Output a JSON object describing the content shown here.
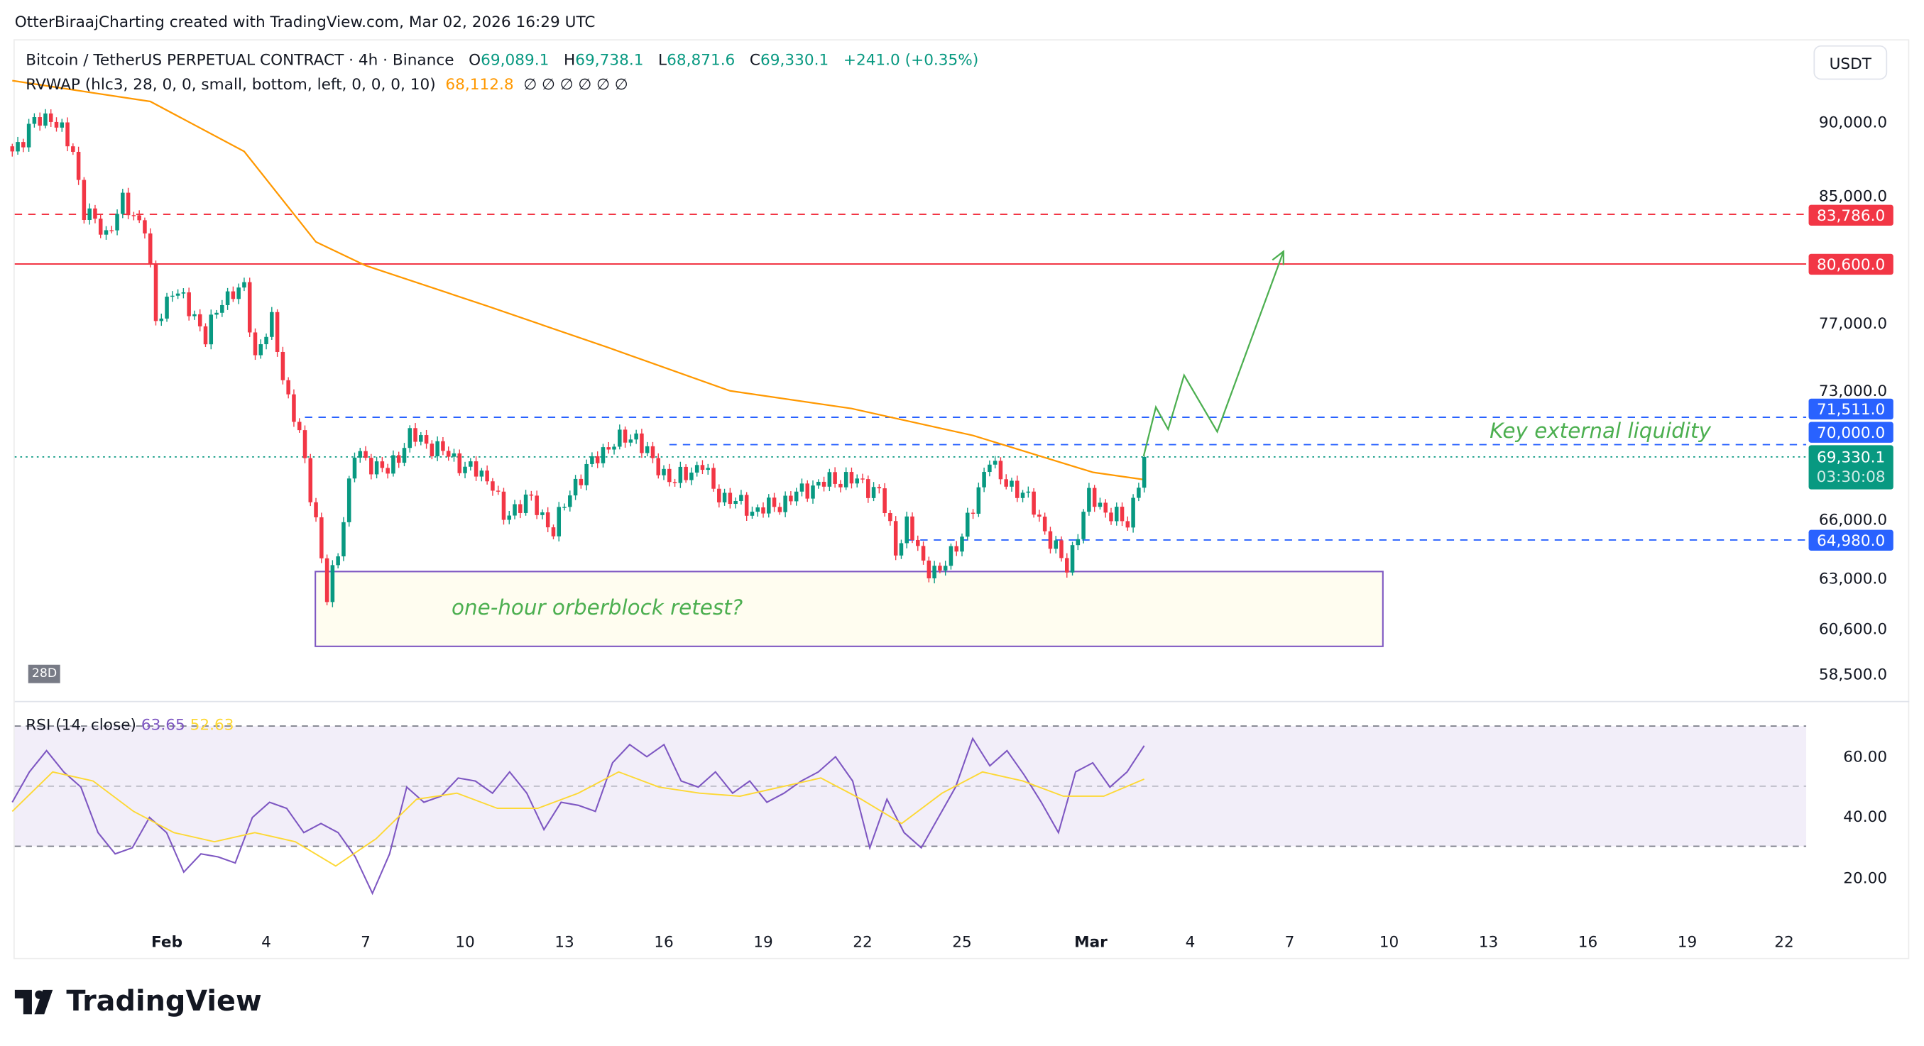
{
  "credit": "OtterBiraajCharting created with TradingView.com, Mar 02, 2026 16:29 UTC",
  "legend": {
    "symbol": "Bitcoin / TetherUS PERPETUAL CONTRACT · 4h · Binance",
    "o_label": "O",
    "o": "69,089.1",
    "h_label": "H",
    "h": "69,738.1",
    "l_label": "L",
    "l": "68,871.6",
    "c_label": "C",
    "c": "69,330.1",
    "change": "+241.0 (+0.35%)",
    "indicator": "RVWAP (hlc3, 28, 0, 0, small, bottom, left, 0, 0, 0, 10)",
    "indicator_value": "68,112.8",
    "indicator_na": "∅  ∅  ∅  ∅  ∅  ∅"
  },
  "currency_button": "USDT",
  "price_ticks": [
    "90,000.0",
    "85,000.0",
    "77,000.0",
    "73,000.0",
    "66,000.0",
    "63,000.0",
    "60,600.0",
    "58,500.0"
  ],
  "badges": {
    "level_83786": "83,786.0",
    "level_80600": "80,600.0",
    "level_71511": "71,511.0",
    "level_70000": "70,000.0",
    "last_price": "69,330.1",
    "countdown": "03:30:08",
    "level_64980": "64,980.0"
  },
  "range_label": "28D",
  "annotations": {
    "box_text": "one-hour orberblock retest?",
    "liquidity_text": "Key external liquidity"
  },
  "rsi": {
    "legend": "RSI (14, close)",
    "value": "63.65",
    "ma_value": "52.63",
    "ticks": [
      "60.00",
      "40.00",
      "20.00"
    ]
  },
  "time_ticks": [
    "Feb",
    "4",
    "7",
    "10",
    "13",
    "16",
    "19",
    "22",
    "25",
    "Mar",
    "4",
    "7",
    "10",
    "13",
    "16",
    "19",
    "22"
  ],
  "brand": "TradingView",
  "colors": {
    "up": "#089981",
    "down": "#f23645",
    "rvwap": "#ff9800",
    "rsi": "#7e57c2",
    "rsi_ma": "#fdd835",
    "level_red": "#f23645",
    "level_blue": "#2962ff",
    "projection": "#4caf50",
    "box_border": "#7e57c2",
    "box_fill": "#fffdf0"
  },
  "chart_data": {
    "type": "candlestick",
    "timeframe": "4h",
    "y_scale": "log",
    "ylim": [
      57500,
      95000
    ],
    "price_path": [
      [
        "2026-01-27T08:00",
        88000
      ],
      [
        "2026-01-28T00:00",
        90000
      ],
      [
        "2026-01-28T12:00",
        90500
      ],
      [
        "2026-01-29T04:00",
        88000
      ],
      [
        "2026-01-29T12:00",
        84000
      ],
      [
        "2026-01-30T04:00",
        82500
      ],
      [
        "2026-01-30T16:00",
        84500
      ],
      [
        "2026-01-31T08:00",
        83000
      ],
      [
        "2026-01-31T16:00",
        77000
      ],
      [
        "2026-02-01T04:00",
        79000
      ],
      [
        "2026-02-01T20:00",
        77500
      ],
      [
        "2026-02-02T04:00",
        76000
      ],
      [
        "2026-02-02T16:00",
        78500
      ],
      [
        "2026-02-03T08:00",
        79000
      ],
      [
        "2026-02-03T16:00",
        75000
      ],
      [
        "2026-02-04T04:00",
        77000
      ],
      [
        "2026-02-04T16:00",
        72500
      ],
      [
        "2026-02-05T00:00",
        70500
      ],
      [
        "2026-02-05T12:00",
        66000
      ],
      [
        "2026-02-05T20:00",
        62000
      ],
      [
        "2026-02-06T04:00",
        64500
      ],
      [
        "2026-02-06T16:00",
        69500
      ],
      [
        "2026-02-07T04:00",
        69000
      ],
      [
        "2026-02-07T16:00",
        68500
      ],
      [
        "2026-02-08T08:00",
        70500
      ],
      [
        "2026-02-09T04:00",
        69800
      ],
      [
        "2026-02-09T20:00",
        69000
      ],
      [
        "2026-02-10T20:00",
        68000
      ],
      [
        "2026-02-11T04:00",
        66000
      ],
      [
        "2026-02-11T20:00",
        67200
      ],
      [
        "2026-02-12T16:00",
        65500
      ],
      [
        "2026-02-13T08:00",
        68000
      ],
      [
        "2026-02-14T08:00",
        70000
      ],
      [
        "2026-02-15T04:00",
        70500
      ],
      [
        "2026-02-15T16:00",
        69000
      ],
      [
        "2026-02-16T08:00",
        68000
      ],
      [
        "2026-02-17T04:00",
        69000
      ],
      [
        "2026-02-17T12:00",
        67500
      ],
      [
        "2026-02-18T16:00",
        66500
      ],
      [
        "2026-02-19T08:00",
        66700
      ],
      [
        "2026-02-20T12:00",
        67800
      ],
      [
        "2026-02-21T12:00",
        68200
      ],
      [
        "2026-02-22T12:00",
        67500
      ],
      [
        "2026-02-23T00:00",
        64500
      ],
      [
        "2026-02-23T08:00",
        65800
      ],
      [
        "2026-02-23T20:00",
        63800
      ],
      [
        "2026-02-24T08:00",
        63300
      ],
      [
        "2026-02-24T20:00",
        64800
      ],
      [
        "2026-02-25T08:00",
        66500
      ],
      [
        "2026-02-25T20:00",
        69500
      ],
      [
        "2026-02-26T04:00",
        68000
      ],
      [
        "2026-02-26T20:00",
        67500
      ],
      [
        "2026-02-27T12:00",
        65500
      ],
      [
        "2026-02-28T04:00",
        63500
      ],
      [
        "2026-02-28T12:00",
        65500
      ],
      [
        "2026-02-28T20:00",
        67200
      ],
      [
        "2026-03-01T12:00",
        66300
      ],
      [
        "2026-03-02T00:00",
        65800
      ],
      [
        "2026-03-02T12:00",
        69330.1
      ]
    ],
    "rvwap": [
      [
        "2026-01-27T08:00",
        93000
      ],
      [
        "2026-01-31T12:00",
        91500
      ],
      [
        "2026-02-03T08:00",
        88000
      ],
      [
        "2026-02-05T12:00",
        82000
      ],
      [
        "2026-02-07T00:00",
        80500
      ],
      [
        "2026-02-10T16:00",
        78000
      ],
      [
        "2026-02-14T08:00",
        75500
      ],
      [
        "2026-02-18T00:00",
        73000
      ],
      [
        "2026-02-21T16:00",
        72000
      ],
      [
        "2026-02-25T08:00",
        70500
      ],
      [
        "2026-02-28T23:00",
        68500
      ],
      [
        "2026-03-02T12:00",
        68112.8
      ]
    ],
    "levels": [
      {
        "price": 83786,
        "style": "dashed",
        "color": "red"
      },
      {
        "price": 80600,
        "style": "solid",
        "color": "red"
      },
      {
        "price": 71511,
        "style": "dashed",
        "color": "blue",
        "from": "2026-02-05T04:00"
      },
      {
        "price": 70000,
        "style": "dashed",
        "color": "blue",
        "from": "2026-02-16T04:00"
      },
      {
        "price": 64980,
        "style": "dashed",
        "color": "blue",
        "from": "2026-02-23T08:00"
      }
    ],
    "rsi_range": [
      30,
      70
    ],
    "rsi_values": [
      45,
      55,
      62,
      55,
      50,
      35,
      28,
      30,
      40,
      35,
      22,
      28,
      27,
      25,
      40,
      45,
      43,
      35,
      38,
      35,
      27,
      15,
      28,
      50,
      45,
      47,
      53,
      52,
      48,
      55,
      48,
      36,
      45,
      44,
      42,
      58,
      64,
      60,
      64,
      52,
      50,
      55,
      48,
      52,
      45,
      48,
      52,
      55,
      60,
      52,
      30,
      46,
      35,
      30,
      40,
      50,
      66,
      57,
      62,
      54,
      45,
      35,
      55,
      58,
      50,
      55,
      63.65
    ],
    "rsi_ma_values": [
      42,
      55,
      52,
      42,
      35,
      32,
      35,
      32,
      24,
      33,
      46,
      48,
      43,
      43,
      48,
      55,
      50,
      48,
      47,
      50,
      53,
      46,
      38,
      48,
      55,
      52,
      47,
      47,
      52.63
    ]
  }
}
